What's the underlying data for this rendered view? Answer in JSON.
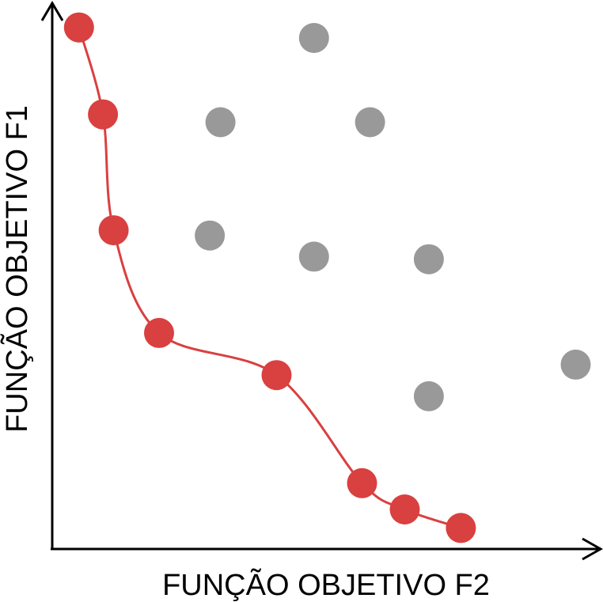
{
  "chart_data": {
    "type": "scatter",
    "title": "",
    "xlabel": "FUNÇÃO OBJETIVO F2",
    "ylabel": "FUNÇÃO OBJETIVO F1",
    "xlim": [
      0,
      100
    ],
    "ylim": [
      0,
      100
    ],
    "grid": false,
    "legend": "none",
    "series": [
      {
        "role": "pareto-front",
        "color": "#d94040",
        "connected": true,
        "points": [
          {
            "x": 5.0,
            "y": 99.0
          },
          {
            "x": 9.5,
            "y": 82.5
          },
          {
            "x": 11.5,
            "y": 60.5
          },
          {
            "x": 20.0,
            "y": 41.0
          },
          {
            "x": 42.0,
            "y": 33.0
          },
          {
            "x": 58.0,
            "y": 12.5
          },
          {
            "x": 66.0,
            "y": 7.5
          },
          {
            "x": 76.5,
            "y": 4.0
          }
        ]
      },
      {
        "role": "dominated",
        "color": "#999999",
        "connected": false,
        "points": [
          {
            "x": 49.0,
            "y": 97.0
          },
          {
            "x": 31.5,
            "y": 81.0
          },
          {
            "x": 59.5,
            "y": 81.0
          },
          {
            "x": 29.5,
            "y": 59.5
          },
          {
            "x": 49.0,
            "y": 55.5
          },
          {
            "x": 70.5,
            "y": 55.0
          },
          {
            "x": 98.0,
            "y": 35.0
          },
          {
            "x": 70.5,
            "y": 29.0
          }
        ]
      }
    ]
  }
}
